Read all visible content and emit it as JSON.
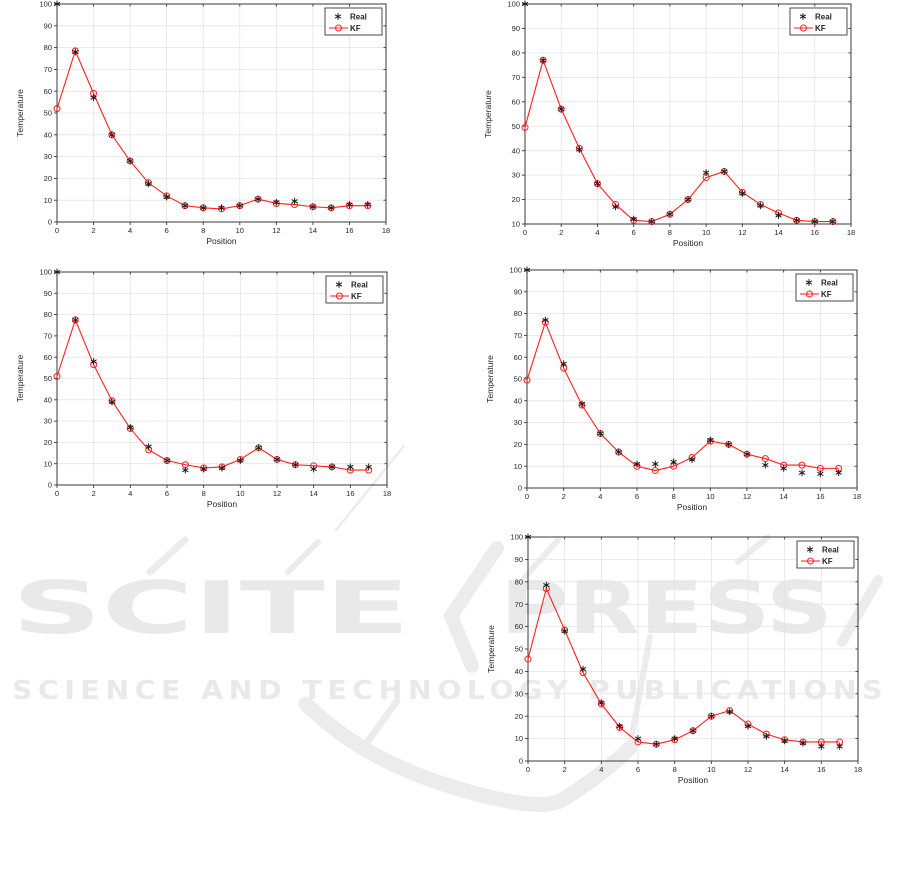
{
  "watermark": {
    "logo_text": "SCITEPRESS",
    "logo_part_1": "SCITE",
    "logo_part_2": "PRESS",
    "subtitle_text": "SCIENCE AND TECHNOLOGY PUBLICATIONS",
    "color": "#e9e9e9"
  },
  "style_colors": {
    "kf_line": "#ff1f1f",
    "real_marker": "#1a1a1a",
    "grid": "#e4e4e4",
    "axis": "#383838",
    "tick_text": "#262626",
    "legend_background": "#ffffff"
  },
  "chart_data": [
    {
      "type": "line",
      "panel": "top-left",
      "title": "",
      "xlabel": "Position",
      "ylabel": "Temperature",
      "x": [
        0,
        1,
        2,
        3,
        4,
        5,
        6,
        7,
        8,
        9,
        10,
        11,
        12,
        13,
        14,
        15,
        16,
        17
      ],
      "xlim": [
        0,
        18
      ],
      "x_ticks": [
        0,
        2,
        4,
        6,
        8,
        10,
        12,
        14,
        16,
        18
      ],
      "ylim": [
        0,
        100
      ],
      "y_ticks": [
        0,
        10,
        20,
        30,
        40,
        50,
        60,
        70,
        80,
        90,
        100
      ],
      "grid": true,
      "legend_position": "top-right",
      "series": [
        {
          "name": "Real",
          "marker": "asterisk",
          "line": false,
          "color": "#1a1a1a",
          "values": [
            100,
            78,
            57,
            40,
            28,
            17.5,
            11.5,
            7.5,
            6.5,
            6.5,
            7.5,
            10.5,
            9,
            9.5,
            7,
            6.5,
            8,
            8
          ]
        },
        {
          "name": "KF",
          "marker": "circle",
          "line": true,
          "color": "#ff1f1f",
          "values": [
            52,
            78.5,
            59,
            40,
            28,
            18,
            12,
            7.5,
            6.5,
            6,
            7.5,
            10.5,
            8.5,
            8,
            7,
            6.5,
            7.5,
            7.5
          ]
        }
      ]
    },
    {
      "type": "line",
      "panel": "top-right",
      "title": "",
      "xlabel": "Position",
      "ylabel": "Temperature",
      "x": [
        0,
        1,
        2,
        3,
        4,
        5,
        6,
        7,
        8,
        9,
        10,
        11,
        12,
        13,
        14,
        15,
        16,
        17
      ],
      "xlim": [
        0,
        18
      ],
      "x_ticks": [
        0,
        2,
        4,
        6,
        8,
        10,
        12,
        14,
        16,
        18
      ],
      "ylim": [
        10,
        100
      ],
      "y_ticks": [
        10,
        20,
        30,
        40,
        50,
        60,
        70,
        80,
        90,
        100
      ],
      "grid": true,
      "legend_position": "top-right",
      "series": [
        {
          "name": "Real",
          "marker": "asterisk",
          "line": false,
          "color": "#1a1a1a",
          "values": [
            100,
            77,
            57,
            40.5,
            26.5,
            17,
            12,
            11,
            14,
            20,
            31,
            31.5,
            22.5,
            17.5,
            13.5,
            11.5,
            11,
            11
          ]
        },
        {
          "name": "KF",
          "marker": "circle",
          "line": true,
          "color": "#ff1f1f",
          "values": [
            49.5,
            77,
            57,
            41,
            26.5,
            18,
            11.5,
            11,
            14,
            20,
            29,
            31.5,
            23,
            18,
            14.5,
            11.5,
            11,
            11
          ]
        }
      ]
    },
    {
      "type": "line",
      "panel": "middle-left",
      "title": "",
      "xlabel": "Position",
      "ylabel": "Temperature",
      "x": [
        0,
        1,
        2,
        3,
        4,
        5,
        6,
        7,
        8,
        9,
        10,
        11,
        12,
        13,
        14,
        15,
        16,
        17
      ],
      "xlim": [
        0,
        18
      ],
      "x_ticks": [
        0,
        2,
        4,
        6,
        8,
        10,
        12,
        14,
        16,
        18
      ],
      "ylim": [
        0,
        100
      ],
      "y_ticks": [
        0,
        10,
        20,
        30,
        40,
        50,
        60,
        70,
        80,
        90,
        100
      ],
      "grid": true,
      "legend_position": "top-right",
      "series": [
        {
          "name": "Real",
          "marker": "asterisk",
          "line": false,
          "color": "#1a1a1a",
          "values": [
            100,
            77.5,
            58,
            39,
            27,
            18,
            11.5,
            7,
            7.5,
            8,
            11.5,
            17.5,
            12,
            9.5,
            7.5,
            8.5,
            8.5,
            8.5
          ]
        },
        {
          "name": "KF",
          "marker": "circle",
          "line": true,
          "color": "#ff1f1f",
          "values": [
            51,
            77.5,
            56.5,
            39.5,
            26.5,
            16.5,
            11.5,
            9.5,
            8,
            8.5,
            12,
            17.5,
            12,
            9.5,
            9,
            8.5,
            7,
            7
          ]
        }
      ]
    },
    {
      "type": "line",
      "panel": "middle-right",
      "title": "",
      "xlabel": "Position",
      "ylabel": "Temperature",
      "x": [
        0,
        1,
        2,
        3,
        4,
        5,
        6,
        7,
        8,
        9,
        10,
        11,
        12,
        13,
        14,
        15,
        16,
        17
      ],
      "xlim": [
        0,
        18
      ],
      "x_ticks": [
        0,
        2,
        4,
        6,
        8,
        10,
        12,
        14,
        16,
        18
      ],
      "ylim": [
        0,
        100
      ],
      "y_ticks": [
        0,
        10,
        20,
        30,
        40,
        50,
        60,
        70,
        80,
        90,
        100
      ],
      "grid": true,
      "legend_position": "top-right",
      "series": [
        {
          "name": "Real",
          "marker": "asterisk",
          "line": false,
          "color": "#1a1a1a",
          "values": [
            100,
            77,
            57,
            38.5,
            25,
            16.5,
            11,
            11,
            12,
            13,
            22,
            20,
            15.5,
            10.5,
            9,
            7,
            6.5,
            7
          ]
        },
        {
          "name": "KF",
          "marker": "circle",
          "line": true,
          "color": "#ff1f1f",
          "values": [
            49.5,
            76,
            55,
            38,
            25,
            16.5,
            10,
            8,
            10,
            14,
            21.5,
            20,
            15.5,
            13.5,
            10.5,
            10.5,
            9,
            9
          ]
        }
      ]
    },
    {
      "type": "line",
      "panel": "bottom-right",
      "title": "",
      "xlabel": "Position",
      "ylabel": "Temperature",
      "x": [
        0,
        1,
        2,
        3,
        4,
        5,
        6,
        7,
        8,
        9,
        10,
        11,
        12,
        13,
        14,
        15,
        16,
        17
      ],
      "xlim": [
        0,
        18
      ],
      "x_ticks": [
        0,
        2,
        4,
        6,
        8,
        10,
        12,
        14,
        16,
        18
      ],
      "ylim": [
        0,
        100
      ],
      "y_ticks": [
        0,
        10,
        20,
        30,
        40,
        50,
        60,
        70,
        80,
        90,
        100
      ],
      "grid": true,
      "legend_position": "top-right",
      "series": [
        {
          "name": "Real",
          "marker": "asterisk",
          "line": false,
          "color": "#1a1a1a",
          "values": [
            100,
            78.5,
            58,
            41,
            26,
            15.5,
            10,
            7.5,
            10,
            13.5,
            20,
            22,
            15.5,
            11,
            9,
            8,
            6.5,
            6.5
          ]
        },
        {
          "name": "KF",
          "marker": "circle",
          "line": true,
          "color": "#ff1f1f",
          "values": [
            45.5,
            77,
            58.5,
            39.5,
            25.5,
            15,
            8.5,
            7.5,
            9.5,
            13.5,
            20,
            22.5,
            16.5,
            12,
            9.5,
            8.5,
            8.5,
            8.5
          ]
        }
      ]
    }
  ]
}
